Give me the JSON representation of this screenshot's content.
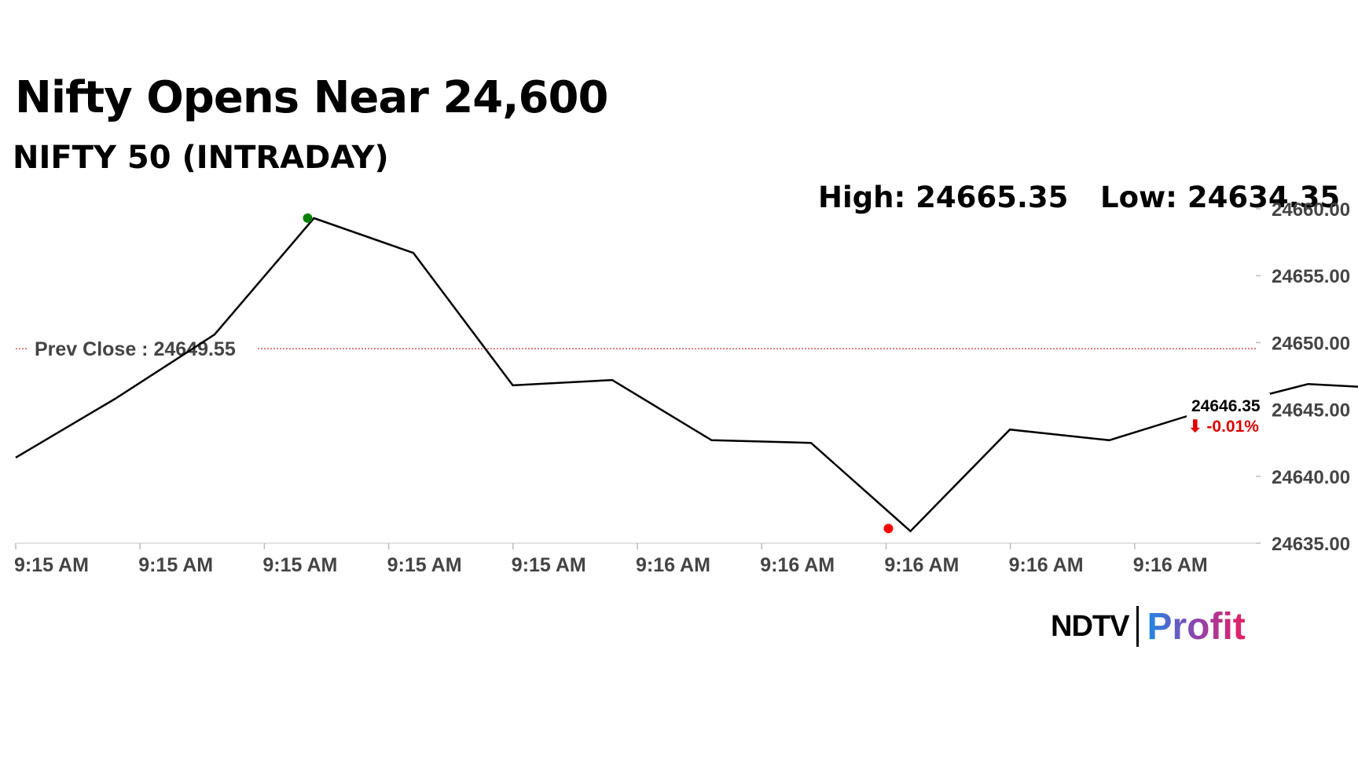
{
  "title": "Nifty Opens Near 24,600",
  "subtitle": "NIFTY 50 (INTRADAY)",
  "stats": {
    "high": "High: 24665.35",
    "low": "Low: 24634.35"
  },
  "logo": {
    "ndtv": "NDTV",
    "profit": "Profit"
  },
  "chart_data": {
    "type": "line",
    "ylim": [
      24635,
      24660
    ],
    "yticks": [
      24635,
      24640,
      24645,
      24650,
      24655,
      24660
    ],
    "ytick_labels": [
      "24635.00",
      "24640.00",
      "24645.00",
      "24650.00",
      "24655.00",
      "24660.00"
    ],
    "xtick_labels": [
      "9:15 AM",
      "9:15 AM",
      "9:15 AM",
      "9:15 AM",
      "9:15 AM",
      "9:16 AM",
      "9:16 AM",
      "9:16 AM",
      "9:16 AM",
      "9:16 AM"
    ],
    "series": [
      {
        "values": [
          24641.4,
          24645.8,
          24650.6,
          24659.3,
          24656.7,
          24646.8,
          24647.2,
          24642.7,
          24642.5,
          24635.9,
          24643.5,
          24642.7,
          24645.0,
          24646.9,
          24646.5
        ],
        "color": "#000000"
      }
    ],
    "prev_close": {
      "label": "Prev Close : 24649.55",
      "value": 24649.55,
      "color": "#cc0000"
    },
    "markers": {
      "high": {
        "value": 24659.3,
        "color": "#008000"
      },
      "low": {
        "value": 24636.1,
        "color": "#ff0000"
      },
      "last": {
        "value": 24646.4,
        "color": "#0000cc"
      }
    },
    "last_label": {
      "value": "24646.35",
      "change": "⬇ -0.01%"
    },
    "grid": false
  }
}
